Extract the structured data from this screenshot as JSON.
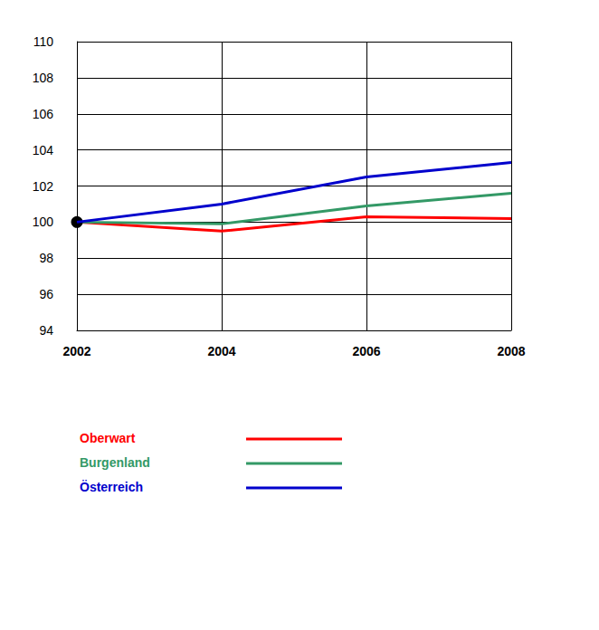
{
  "chart_data": {
    "type": "line",
    "x": [
      2002,
      2004,
      2006,
      2008
    ],
    "xlim": [
      2002,
      2008
    ],
    "xticks": [
      2002,
      2004,
      2006,
      2008
    ],
    "ylim": [
      94,
      110
    ],
    "yticks": [
      94,
      96,
      98,
      100,
      102,
      104,
      106,
      108,
      110
    ],
    "grid": true,
    "legend": "bottom",
    "series": [
      {
        "name": "Oberwart",
        "color": "#ff0000",
        "values": [
          100,
          99.5,
          100.3,
          100.2
        ]
      },
      {
        "name": "Burgenland",
        "color": "#339966",
        "values": [
          100,
          99.9,
          100.9,
          101.6
        ]
      },
      {
        "name": "Österreich",
        "color": "#0000cc",
        "values": [
          100,
          101,
          102.5,
          103.3
        ]
      }
    ]
  }
}
